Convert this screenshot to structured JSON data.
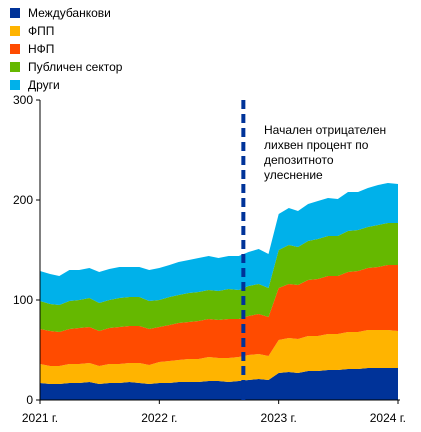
{
  "chart_data": {
    "type": "area",
    "stacked": true,
    "title": "",
    "xlabel": "",
    "ylabel": "",
    "ylim": [
      0,
      300
    ],
    "yticks": [
      0,
      100,
      200,
      300
    ],
    "xlim": [
      "2021-01-01",
      "2024-01-01"
    ],
    "xticks": [
      {
        "date": "2021-01-01",
        "label": "2021 г."
      },
      {
        "date": "2022-01-01",
        "label": "2022 г."
      },
      {
        "date": "2023-01-01",
        "label": "2023 г."
      },
      {
        "date": "2024-01-01",
        "label": "2024 г."
      }
    ],
    "grid": false,
    "legend_position": "top-left",
    "x": [
      "2021-01-01",
      "2021-02-01",
      "2021-03-01",
      "2021-04-01",
      "2021-05-01",
      "2021-06-01",
      "2021-07-01",
      "2021-08-01",
      "2021-09-01",
      "2021-10-01",
      "2021-11-01",
      "2021-12-01",
      "2022-01-01",
      "2022-02-01",
      "2022-03-01",
      "2022-04-01",
      "2022-05-01",
      "2022-06-01",
      "2022-07-01",
      "2022-08-01",
      "2022-09-01",
      "2022-10-01",
      "2022-11-01",
      "2022-12-01",
      "2023-01-01",
      "2023-02-01",
      "2023-03-01",
      "2023-04-01",
      "2023-05-01",
      "2023-06-01",
      "2023-07-01",
      "2023-08-01",
      "2023-09-01",
      "2023-10-01",
      "2023-11-01",
      "2023-12-01",
      "2024-01-01"
    ],
    "series": [
      {
        "name": "Междубанкови",
        "color": "#003399",
        "values": [
          17,
          16,
          16,
          17,
          17,
          18,
          16,
          17,
          17,
          18,
          17,
          16,
          17,
          17,
          18,
          18,
          18,
          19,
          19,
          18,
          19,
          20,
          21,
          20,
          27,
          28,
          27,
          29,
          29,
          30,
          30,
          31,
          31,
          32,
          32,
          32,
          32
        ]
      },
      {
        "name": "ФПП",
        "color": "#ffb400",
        "values": [
          19,
          18,
          18,
          19,
          19,
          19,
          18,
          19,
          19,
          19,
          20,
          19,
          21,
          22,
          22,
          23,
          23,
          24,
          23,
          24,
          24,
          25,
          25,
          24,
          33,
          34,
          34,
          35,
          35,
          36,
          36,
          37,
          37,
          38,
          38,
          38,
          37
        ]
      },
      {
        "name": "НФП",
        "color": "#ff4b00",
        "values": [
          35,
          35,
          34,
          35,
          36,
          36,
          35,
          36,
          37,
          37,
          37,
          36,
          35,
          36,
          37,
          37,
          38,
          38,
          38,
          39,
          38,
          39,
          40,
          39,
          52,
          54,
          54,
          56,
          57,
          58,
          58,
          60,
          61,
          62,
          63,
          65,
          66
        ]
      },
      {
        "name": "Публичен сектор",
        "color": "#65b800",
        "values": [
          28,
          27,
          27,
          28,
          28,
          29,
          28,
          28,
          29,
          29,
          29,
          28,
          27,
          28,
          28,
          29,
          29,
          29,
          29,
          30,
          29,
          30,
          30,
          29,
          38,
          39,
          38,
          39,
          40,
          40,
          40,
          41,
          41,
          41,
          42,
          42,
          42
        ]
      },
      {
        "name": "Други",
        "color": "#00b1ea",
        "values": [
          30,
          30,
          29,
          31,
          30,
          30,
          31,
          31,
          31,
          30,
          30,
          31,
          32,
          32,
          33,
          33,
          34,
          34,
          33,
          33,
          34,
          34,
          35,
          34,
          36,
          37,
          36,
          37,
          38,
          38,
          37,
          39,
          38,
          39,
          40,
          40,
          39
        ]
      }
    ],
    "annotation": {
      "date": "2022-09-15",
      "text_lines": [
        "Начален отрицателен",
        "лихвен процент  по",
        "депозитното",
        "улеснение"
      ],
      "line_color": "#003399"
    }
  }
}
